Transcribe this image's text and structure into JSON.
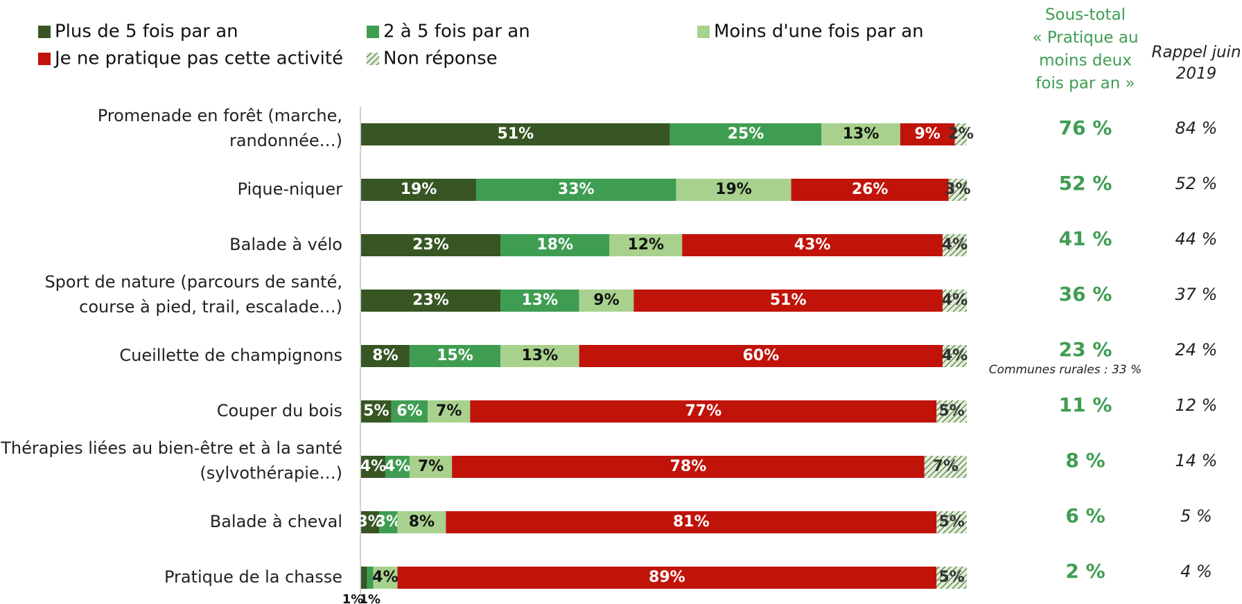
{
  "chart_data": {
    "type": "stacked-bar-horizontal",
    "categories": [
      "Promenade en forêt (marche,\nrandonnée…)",
      "Pique-niquer",
      "Balade à vélo",
      "Sport de nature (parcours de santé,\ncourse à pied, trail, escalade…)",
      "Cueillette de champignons",
      "Couper du bois",
      "Thérapies liées au bien-être et à la santé\n(sylvothérapie…)",
      "Balade à cheval",
      "Pratique de la chasse"
    ],
    "xlim": [
      0,
      100
    ],
    "series": [
      {
        "name": "Plus de 5 fois par an",
        "color": "#375623",
        "values": [
          51,
          19,
          23,
          23,
          8,
          5,
          4,
          3,
          1
        ],
        "value_labels": [
          "51%",
          "19%",
          "23%",
          "23%",
          "8%",
          "5%",
          "4%",
          "3%",
          "1%"
        ]
      },
      {
        "name": "2 à 5 fois par an",
        "color": "#3f9d52",
        "values": [
          25,
          33,
          18,
          13,
          15,
          6,
          4,
          3,
          1
        ],
        "value_labels": [
          "25%",
          "33%",
          "18%",
          "13%",
          "15%",
          "6%",
          "4%",
          "3%",
          "1%"
        ]
      },
      {
        "name": "Moins d'une fois par an",
        "color": "#a9d18e",
        "values": [
          13,
          19,
          12,
          9,
          13,
          7,
          7,
          8,
          4
        ],
        "value_labels": [
          "13%",
          "19%",
          "12%",
          "9%",
          "13%",
          "7%",
          "7%",
          "8%",
          "4%"
        ]
      },
      {
        "name": "Je ne pratique pas cette activité",
        "color": "#c0140a",
        "values": [
          9,
          26,
          43,
          51,
          60,
          77,
          78,
          81,
          89
        ],
        "value_labels": [
          "9%",
          "26%",
          "43%",
          "51%",
          "60%",
          "77%",
          "78%",
          "81%",
          "89%"
        ]
      },
      {
        "name": "Non réponse",
        "color": "hatch",
        "values": [
          2,
          3,
          4,
          4,
          4,
          5,
          7,
          5,
          5
        ],
        "value_labels": [
          "2%",
          "3%",
          "4%",
          "4%",
          "4%",
          "5%",
          "7%",
          "5%",
          "5%"
        ]
      }
    ],
    "subtotal": {
      "header": [
        "Sous-total",
        "« Pratique au",
        "moins deux",
        "fois par an »"
      ],
      "values": [
        "76 %",
        "52 %",
        "41 %",
        "36 %",
        "23 %",
        "11 %",
        "8 %",
        "6 %",
        "2 %"
      ]
    },
    "recall": {
      "header": [
        "Rappel juin",
        "2019"
      ],
      "values": [
        "84 %",
        "52 %",
        "44 %",
        "37 %",
        "24 %",
        "12 %",
        "14 %",
        "5 %",
        "4 %"
      ]
    },
    "annotation": "Communes rurales : 33 %"
  }
}
